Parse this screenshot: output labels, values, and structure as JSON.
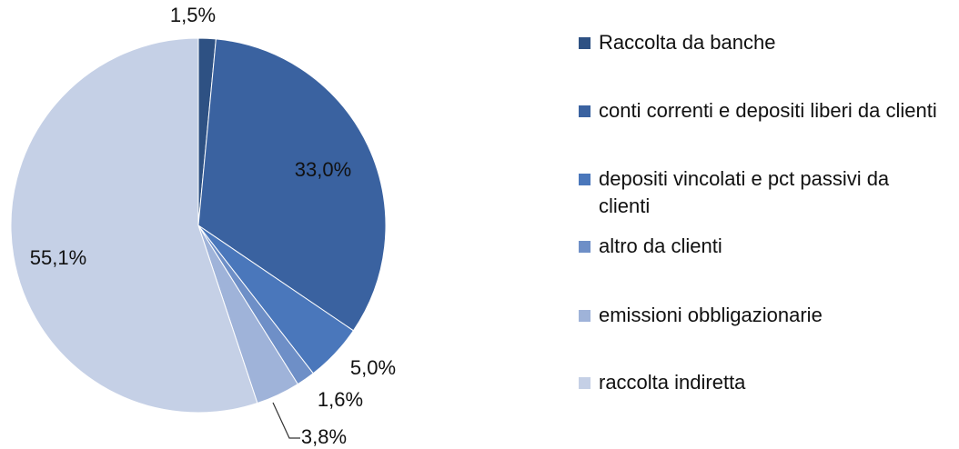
{
  "chart_data": {
    "type": "pie",
    "categories": [
      "Raccolta da banche",
      "conti correnti e depositi liberi da clienti",
      "depositi vincolati e pct passivi da clienti",
      "altro da clienti",
      "emissioni obbligazionarie",
      "raccolta indiretta"
    ],
    "values": [
      1.5,
      33.0,
      5.0,
      1.6,
      3.8,
      55.1
    ],
    "value_labels": [
      "1,5%",
      "33,0%",
      "5,0%",
      "1,6%",
      "3,8%",
      "55,1%"
    ],
    "colors": [
      "#2e5183",
      "#3a62a0",
      "#4a77bb",
      "#6e8fc7",
      "#9fb3d9",
      "#c5d0e6"
    ],
    "legend": "right"
  }
}
